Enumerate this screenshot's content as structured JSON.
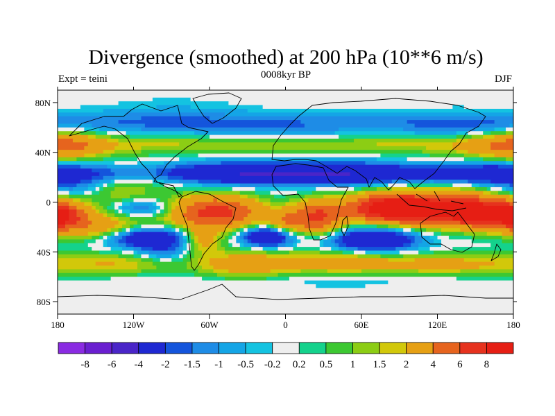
{
  "chart_data": {
    "type": "heatmap",
    "title": "Divergence (smoothed) at 200 hPa (10**6 m/s)",
    "subtitle_left": "Expt = teini",
    "subtitle_center": "0008kyr BP",
    "subtitle_right": "DJF",
    "x_range": [
      -180,
      180
    ],
    "y_range": [
      -90,
      90
    ],
    "x_ticks": [
      {
        "value": -180,
        "label": "180"
      },
      {
        "value": -120,
        "label": "120W"
      },
      {
        "value": -60,
        "label": "60W"
      },
      {
        "value": 0,
        "label": "0"
      },
      {
        "value": 60,
        "label": "60E"
      },
      {
        "value": 120,
        "label": "120E"
      },
      {
        "value": 180,
        "label": "180"
      }
    ],
    "y_ticks": [
      {
        "value": 80,
        "label": "80N"
      },
      {
        "value": 40,
        "label": "40N"
      },
      {
        "value": 0,
        "label": "0"
      },
      {
        "value": -40,
        "label": "40S"
      },
      {
        "value": -80,
        "label": "80S"
      }
    ],
    "colorbar": {
      "levels": [
        -8,
        -6,
        -4,
        -2,
        -1.5,
        -1,
        -0.5,
        -0.2,
        0.2,
        0.5,
        1,
        1.5,
        2,
        4,
        6,
        8
      ],
      "labels": [
        "-8",
        "-6",
        "-4",
        "-2",
        "-1.5",
        "-1",
        "-0.5",
        "-0.2",
        "0.2",
        "0.5",
        "1",
        "1.5",
        "2",
        "4",
        "6",
        "8"
      ],
      "colors": [
        "#8a2be2",
        "#6a1fd0",
        "#4a25c8",
        "#1e28d2",
        "#1455dc",
        "#1e8ce6",
        "#14a5e6",
        "#14c3e1",
        "#eeeeee",
        "#14d28c",
        "#3cc832",
        "#8ccd14",
        "#d2c80a",
        "#e6a014",
        "#e6641e",
        "#e6321e",
        "#e61e14"
      ]
    }
  }
}
